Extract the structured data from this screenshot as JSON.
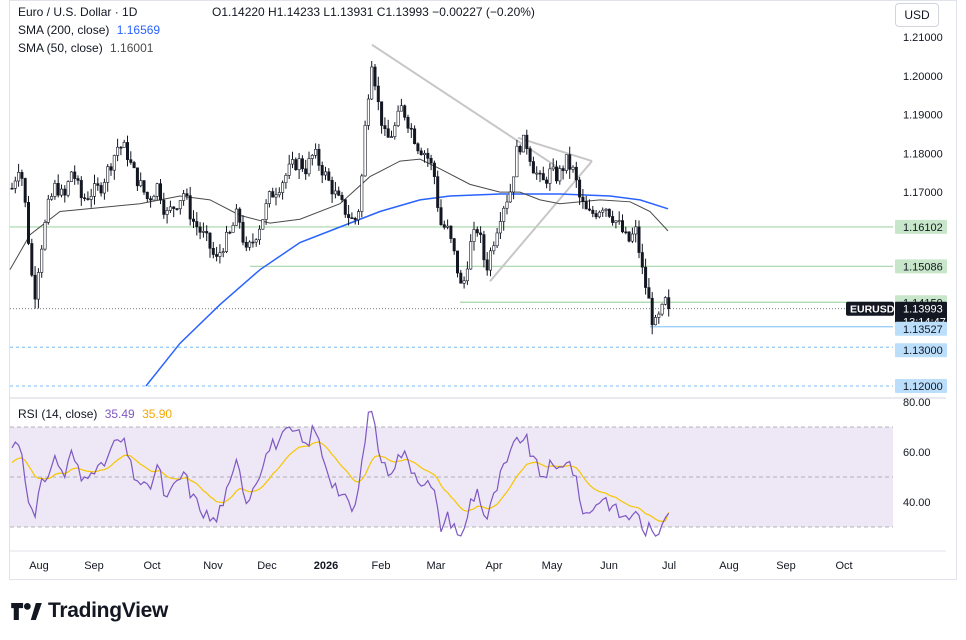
{
  "header": {
    "symbol_title": "Euro / U.S. Dollar · 1D",
    "ohlc": "O1.14220  H1.14233  L1.13931  C1.13993  −0.00227 (−0.20%)",
    "sma200_label": "SMA (200, close)",
    "sma200_value": "1.16569",
    "sma50_label": "SMA (50, close)",
    "sma50_value": "1.16001",
    "currency": "USD"
  },
  "rsi_legend": {
    "label": "RSI (14, close)",
    "value": "35.49",
    "ma_value": "35.90"
  },
  "price_axis": {
    "ticks": [
      "1.21000",
      "1.20000",
      "1.19000",
      "1.18000",
      "1.17000"
    ]
  },
  "price_labels": [
    {
      "text": "1.16102",
      "price": 1.16102,
      "style": "green"
    },
    {
      "text": "1.15086",
      "price": 1.15086,
      "style": "green"
    },
    {
      "text": "1.14159",
      "price": 1.14159,
      "style": "green"
    },
    {
      "text": "1.13993",
      "price": 1.13993,
      "style": "current"
    },
    {
      "text": "13:14:47",
      "price": 1.13993,
      "style": "countdown"
    },
    {
      "text": "1.13527",
      "price": 1.13527,
      "style": "blue"
    },
    {
      "text": "1.13000",
      "price": 1.13,
      "style": "blue"
    },
    {
      "text": "1.12000",
      "price": 1.12,
      "style": "blue"
    }
  ],
  "current_symbol": "EURUSD",
  "rsi_axis": {
    "ticks": [
      "80.00",
      "60.00",
      "40.00"
    ]
  },
  "time_axis": {
    "labels": [
      "Aug",
      "Sep",
      "Oct",
      "Nov",
      "Dec",
      "2026",
      "Feb",
      "Mar",
      "Apr",
      "May",
      "Jun",
      "Jul",
      "Aug",
      "Sep",
      "Oct"
    ]
  },
  "colors": {
    "up": "#131722",
    "down": "#131722",
    "sma200": "#2962ff",
    "sma50": "#4a4a4a",
    "rsi": "#7e57c2",
    "rsi_ma": "#f7c600",
    "rsi_band": "#ede7f6",
    "green_line": "#a5d6a7",
    "blue_line": "#90caf9",
    "blue_label": "#bbdefb",
    "green_label": "#c8e6c9"
  },
  "brand": "TradingView",
  "chart_data": {
    "type": "candlestick",
    "symbol": "EURUSD",
    "timeframe": "1D",
    "x_axis_labels": [
      "Aug",
      "Sep",
      "Oct",
      "Nov",
      "Dec",
      "2026",
      "Feb",
      "Mar",
      "Apr",
      "May",
      "Jun",
      "Jul",
      "Aug",
      "Sep",
      "Oct"
    ],
    "ylim": [
      1.118,
      1.214
    ],
    "key_closes": [
      {
        "x": "Jul",
        "y": 1.173
      },
      {
        "x": "Aug",
        "y": 1.142
      },
      {
        "x": "Aug",
        "y": 1.163
      },
      {
        "x": "Sep",
        "y": 1.172
      },
      {
        "x": "Sep",
        "y": 1.182
      },
      {
        "x": "Oct",
        "y": 1.171
      },
      {
        "x": "Oct",
        "y": 1.163
      },
      {
        "x": "Nov",
        "y": 1.152
      },
      {
        "x": "Nov",
        "y": 1.159
      },
      {
        "x": "Dec",
        "y": 1.171
      },
      {
        "x": "Dec",
        "y": 1.178
      },
      {
        "x": "2026",
        "y": 1.165
      },
      {
        "x": "2026",
        "y": 1.16
      },
      {
        "x": "Feb",
        "y": 1.206
      },
      {
        "x": "Feb",
        "y": 1.185
      },
      {
        "x": "Mar",
        "y": 1.178
      },
      {
        "x": "Mar",
        "y": 1.143
      },
      {
        "x": "Apr",
        "y": 1.158
      },
      {
        "x": "Apr",
        "y": 1.147
      },
      {
        "x": "May",
        "y": 1.182
      },
      {
        "x": "May",
        "y": 1.171
      },
      {
        "x": "Jun",
        "y": 1.167
      },
      {
        "x": "Jun",
        "y": 1.16
      },
      {
        "x": "Jun",
        "y": 1.14
      },
      {
        "x": "Jul",
        "y": 1.13993
      }
    ],
    "series": [
      {
        "name": "SMA (200, close)",
        "last": 1.16569
      },
      {
        "name": "SMA (50, close)",
        "last": 1.16001
      }
    ],
    "horizontal_levels": [
      1.16102,
      1.15086,
      1.14159,
      1.13527,
      1.13,
      1.12
    ],
    "triangle": [
      {
        "x": "Feb",
        "y": 1.208
      },
      {
        "x": "May",
        "y": 1.176
      },
      {
        "x": "Apr",
        "y": 1.147
      }
    ],
    "rsi": {
      "ylim": [
        23,
        80
      ],
      "levels": [
        70,
        50,
        30
      ],
      "last": 35.49,
      "ma_last": 35.9
    }
  }
}
